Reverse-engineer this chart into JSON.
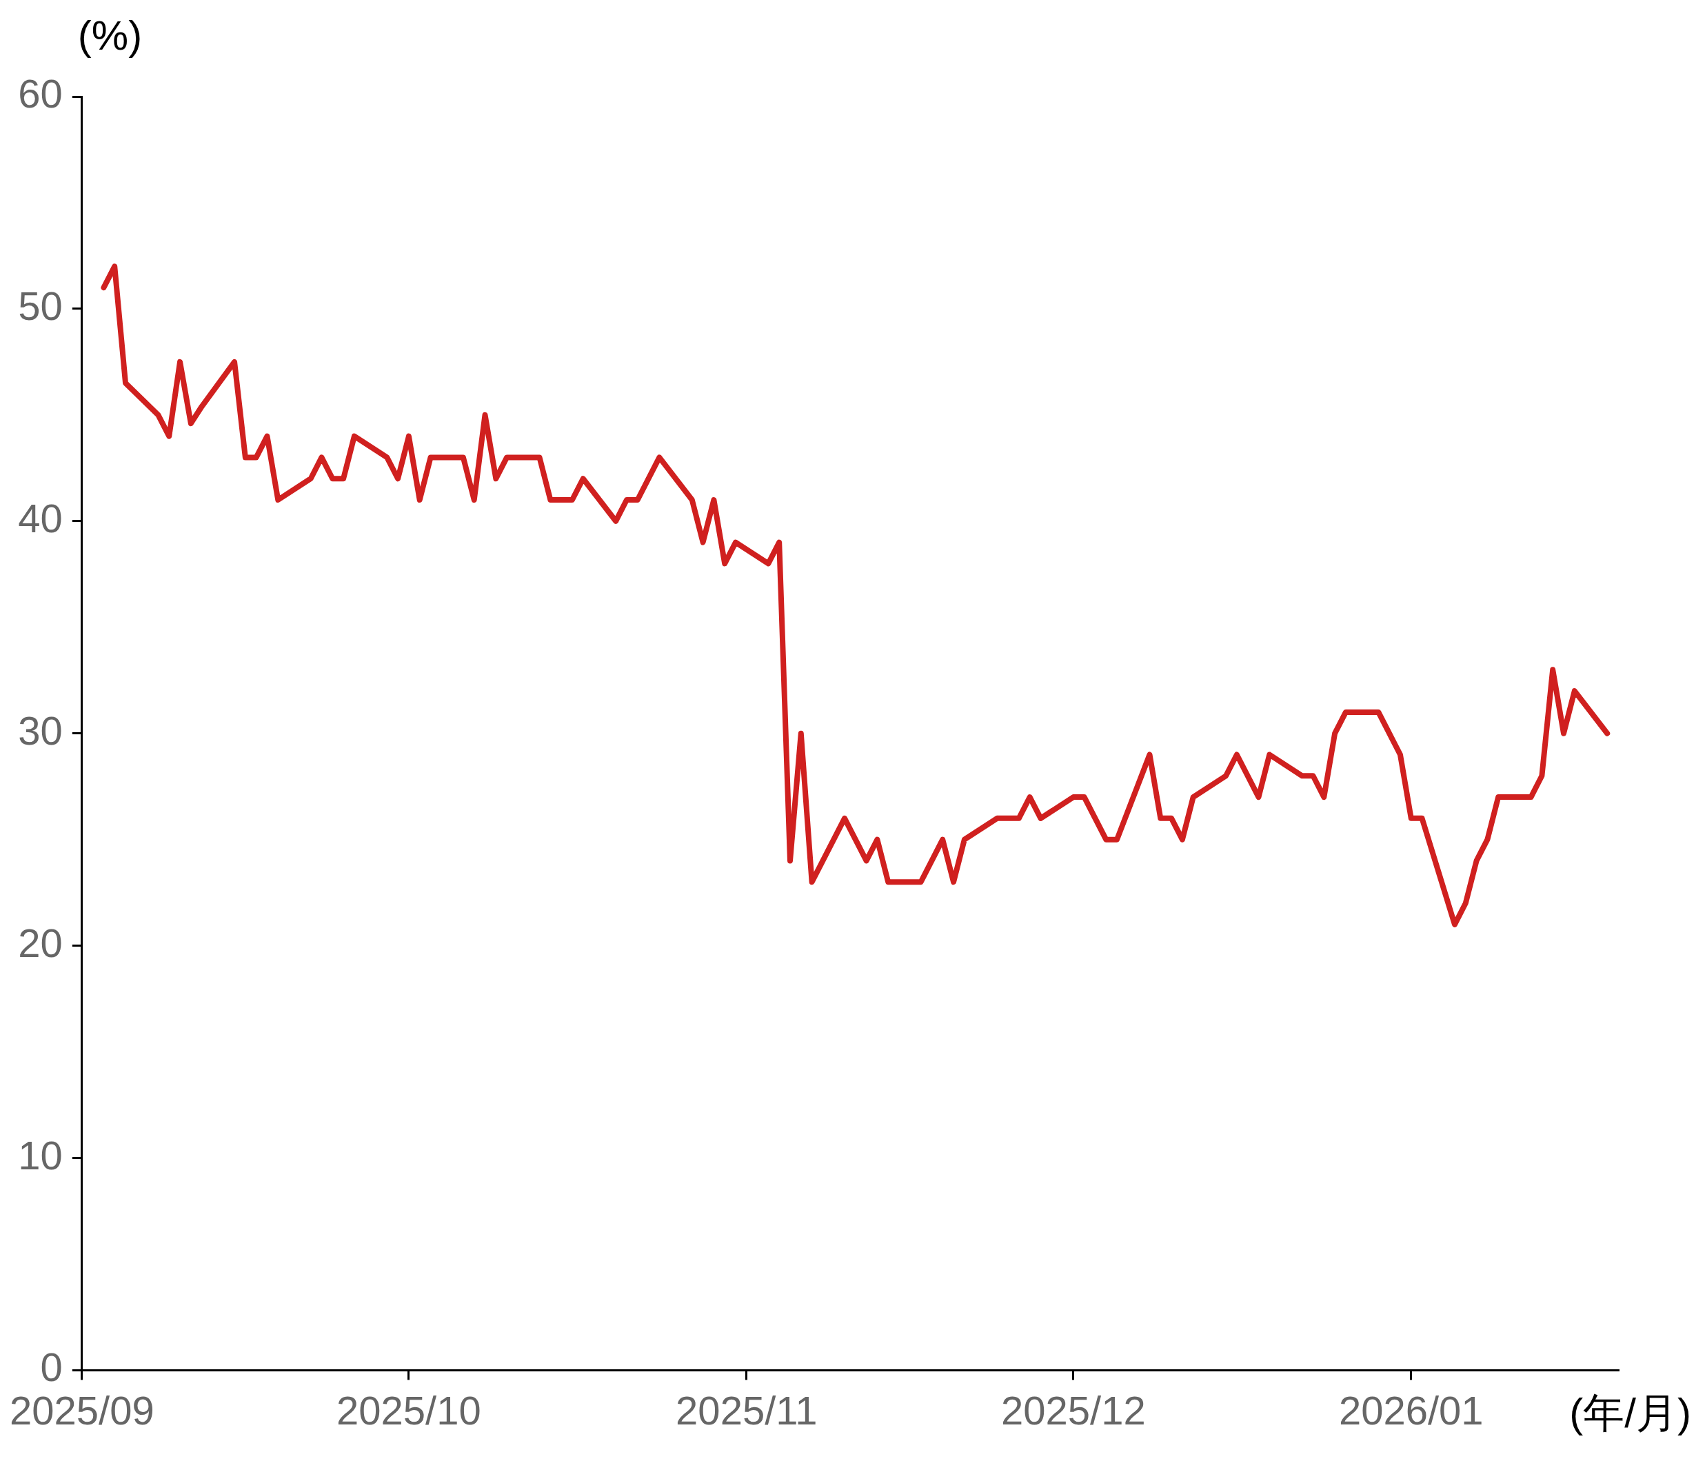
{
  "chart_data": {
    "type": "line",
    "ylabel": "(%)",
    "xlabel": "(年/月)",
    "x": [
      "2025-09-03",
      "2025-09-04",
      "2025-09-05",
      "2025-09-08",
      "2025-09-09",
      "2025-09-10",
      "2025-09-11",
      "2025-09-12",
      "2025-09-15",
      "2025-09-16",
      "2025-09-17",
      "2025-09-18",
      "2025-09-19",
      "2025-09-22",
      "2025-09-23",
      "2025-09-24",
      "2025-09-25",
      "2025-09-26",
      "2025-09-29",
      "2025-09-30",
      "2025-10-01",
      "2025-10-02",
      "2025-10-03",
      "2025-10-06",
      "2025-10-07",
      "2025-10-08",
      "2025-10-09",
      "2025-10-10",
      "2025-10-13",
      "2025-10-14",
      "2025-10-16",
      "2025-10-17",
      "2025-10-20",
      "2025-10-21",
      "2025-10-22",
      "2025-10-24",
      "2025-10-27",
      "2025-10-28",
      "2025-10-29",
      "2025-10-30",
      "2025-10-31",
      "2025-11-03",
      "2025-11-04",
      "2025-11-05",
      "2025-11-06",
      "2025-11-07",
      "2025-11-10",
      "2025-11-12",
      "2025-11-13",
      "2025-11-14",
      "2025-11-17",
      "2025-11-19",
      "2025-11-20",
      "2025-11-21",
      "2025-11-24",
      "2025-11-26",
      "2025-11-27",
      "2025-11-28",
      "2025-12-01",
      "2025-12-02",
      "2025-12-04",
      "2025-12-05",
      "2025-12-08",
      "2025-12-09",
      "2025-12-10",
      "2025-12-11",
      "2025-12-12",
      "2025-12-15",
      "2025-12-16",
      "2025-12-18",
      "2025-12-19",
      "2025-12-22",
      "2025-12-23",
      "2025-12-24",
      "2025-12-25",
      "2025-12-26",
      "2025-12-29",
      "2025-12-31",
      "2026-01-01",
      "2026-01-02",
      "2026-01-05",
      "2026-01-06",
      "2026-01-07",
      "2026-01-08",
      "2026-01-09",
      "2026-01-12",
      "2026-01-13",
      "2026-01-14",
      "2026-01-15",
      "2026-01-16",
      "2026-01-19"
    ],
    "series": [
      {
        "color": "#d0201f",
        "values": [
          51,
          52,
          46.5,
          45,
          44,
          47.5,
          44.6,
          45.4,
          47.5,
          43,
          43,
          44,
          41,
          42,
          43,
          42,
          42,
          44,
          43,
          42,
          44,
          41,
          43,
          43,
          41,
          45,
          42,
          43,
          43,
          41,
          41,
          42,
          40,
          41,
          41,
          43,
          41,
          39,
          41,
          38,
          39,
          38,
          39,
          24,
          30,
          23,
          26,
          24,
          25,
          23,
          23,
          25,
          23,
          25,
          26,
          26,
          27,
          26,
          27,
          27,
          25,
          25,
          29,
          26,
          26,
          25,
          27,
          28,
          29,
          27,
          29,
          28,
          28,
          27,
          30,
          31,
          31,
          29,
          26,
          26,
          21,
          22,
          24,
          25,
          27,
          27,
          28,
          33,
          30,
          32,
          30
        ]
      }
    ],
    "xlim": [
      "2025-09-01",
      "2026-01-20"
    ],
    "xticks": [
      {
        "value": "2025-09-01",
        "label": "2025/09"
      },
      {
        "value": "2025-10-01",
        "label": "2025/10"
      },
      {
        "value": "2025-11-01",
        "label": "2025/11"
      },
      {
        "value": "2025-12-01",
        "label": "2025/12"
      },
      {
        "value": "2026-01-01",
        "label": "2026/01"
      }
    ],
    "ylim": [
      0,
      60
    ],
    "yticks": [
      0,
      10,
      20,
      30,
      40,
      50,
      60
    ],
    "grid": false,
    "legend": false,
    "marker": "none",
    "line_style": "solid"
  }
}
